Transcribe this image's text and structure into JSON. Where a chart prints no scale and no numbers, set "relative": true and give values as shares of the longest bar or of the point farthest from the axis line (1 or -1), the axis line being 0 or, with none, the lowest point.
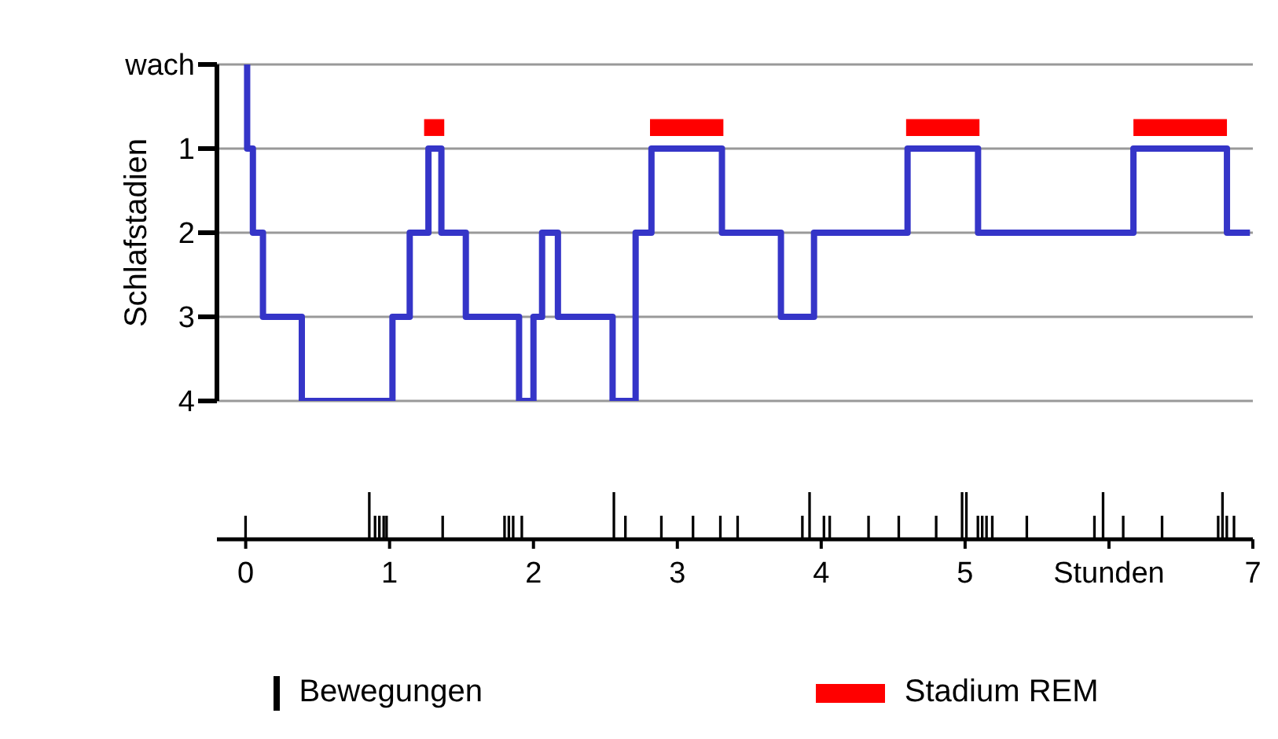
{
  "chart_data": [
    {
      "type": "step",
      "ylabel": "Schlafstadien",
      "xlim": [
        -0.2,
        7
      ],
      "ylim": [
        4,
        0
      ],
      "yticks": [
        {
          "value": 0,
          "label": "wach"
        },
        1,
        2,
        3,
        4
      ],
      "tick_labels": "y",
      "grid": "y",
      "bands": [
        {
          "axis": "x",
          "from": 1.24,
          "to": 1.38,
          "label": "Stadium REM",
          "color": "#ff0000"
        },
        {
          "axis": "x",
          "from": 2.81,
          "to": 3.32,
          "color": "#ff0000"
        },
        {
          "axis": "x",
          "from": 4.59,
          "to": 5.1,
          "color": "#ff0000"
        },
        {
          "axis": "x",
          "from": 6.17,
          "to": 6.82,
          "color": "#ff0000"
        }
      ],
      "series": [
        {
          "color": "#3535c8",
          "x": [
            0,
            0.01,
            0.05,
            0.12,
            0.39,
            1.02,
            1.14,
            1.27,
            1.36,
            1.53,
            1.9,
            2.0,
            2.06,
            2.17,
            2.55,
            2.71,
            2.82,
            3.31,
            3.72,
            3.95,
            4.6,
            5.09,
            6.17,
            6.82,
            6.98
          ],
          "values": [
            0,
            1,
            2,
            3,
            4,
            3,
            2,
            1,
            2,
            3,
            4,
            3,
            2,
            3,
            4,
            2,
            1,
            2,
            3,
            2,
            1,
            2,
            1,
            2,
            2
          ]
        }
      ]
    },
    {
      "type": "bar",
      "relative": true,
      "xlim": [
        -0.2,
        7
      ],
      "xticks": [
        0,
        1,
        2,
        3,
        4,
        5,
        {
          "value": 6,
          "label": "Stunden"
        },
        7
      ],
      "tick_labels": "x",
      "legend": "bottom",
      "series": [
        {
          "name": "Bewegungen",
          "color": "#000000",
          "x": [
            0,
            0.86,
            0.9,
            0.93,
            0.96,
            0.98,
            1.37,
            1.8,
            1.83,
            1.86,
            1.92,
            2.56,
            2.64,
            2.89,
            3.11,
            3.3,
            3.42,
            3.87,
            3.92,
            4.02,
            4.06,
            4.33,
            4.54,
            4.8,
            4.98,
            5.01,
            5.09,
            5.12,
            5.15,
            5.19,
            5.43,
            5.9,
            5.96,
            6.1,
            6.37,
            6.76,
            6.79,
            6.82,
            6.87
          ],
          "values": [
            0.5,
            1,
            0.5,
            0.5,
            0.5,
            0.5,
            0.5,
            0.5,
            0.5,
            0.5,
            0.5,
            1,
            0.5,
            0.5,
            0.5,
            0.5,
            0.5,
            0.5,
            1,
            0.5,
            0.5,
            0.5,
            0.5,
            0.5,
            1,
            1,
            0.5,
            0.5,
            0.5,
            0.5,
            0.5,
            0.5,
            1,
            0.5,
            0.5,
            0.5,
            1,
            0.5,
            0.5
          ]
        }
      ]
    }
  ]
}
